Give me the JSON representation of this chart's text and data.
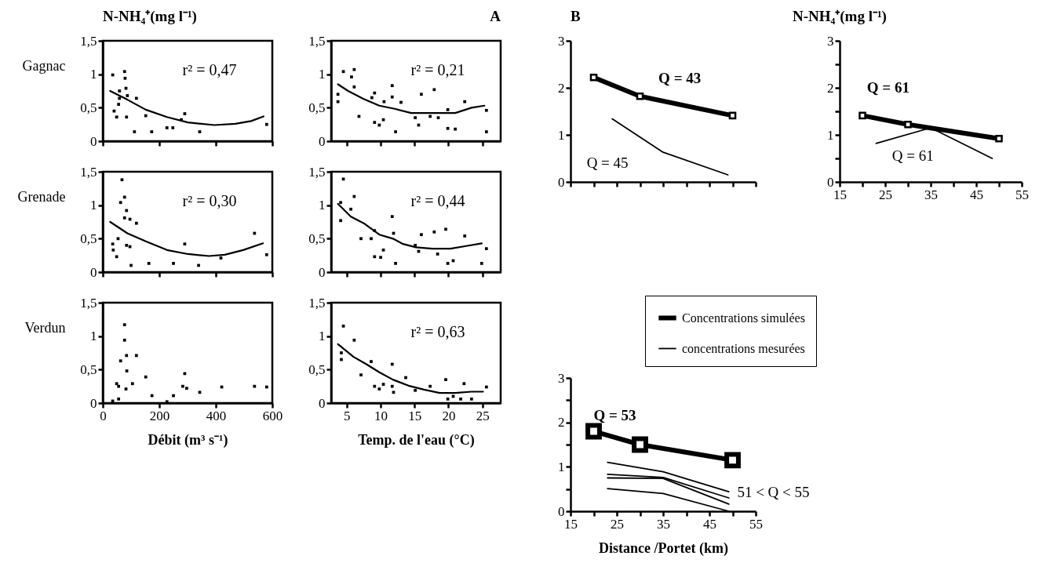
{
  "chart_data": [
    {
      "type": "scatter",
      "title": "N-NH₄⁺(mg l⁻¹)",
      "ylabel": "Gagnac",
      "xlim": [
        0,
        600
      ],
      "xticks": [
        0,
        200,
        400,
        600
      ],
      "ylim": [
        0,
        1.5
      ],
      "yticks": [
        0,
        {
          "value": 0.5,
          "label": "0,5"
        },
        1,
        {
          "value": 1.5,
          "label": "1,5"
        }
      ],
      "tick_labels": "y",
      "annotations": [
        "r² = 0,47"
      ],
      "series": [
        {
          "type": "scatter",
          "color": "#000000",
          "marker": "square",
          "x": [
            35,
            77,
            79,
            40,
            56,
            59,
            49,
            84,
            82,
            87,
            59,
            119,
            112,
            152,
            173,
            227,
            248,
            290,
            278,
            343,
            580
          ],
          "values": [
            0.99,
            1.04,
            0.94,
            0.45,
            0.55,
            0.64,
            0.36,
            0.36,
            0.79,
            0.68,
            0.75,
            0.64,
            0.14,
            0.38,
            0.14,
            0.2,
            0.2,
            0.41,
            0.32,
            0.14,
            0.25
          ]
        },
        {
          "type": "line",
          "color": "#000000",
          "x": [
            26,
            87,
            152,
            227,
            301,
            395,
            469,
            525,
            569
          ],
          "values": [
            0.75,
            0.62,
            0.47,
            0.36,
            0.28,
            0.24,
            0.26,
            0.3,
            0.37
          ]
        }
      ]
    },
    {
      "type": "scatter",
      "title": "A",
      "xlim": [
        2.7,
        27.7
      ],
      "xticks": [
        5,
        10,
        15,
        20,
        25
      ],
      "ylim": [
        0,
        1.5
      ],
      "yticks": [
        0,
        {
          "value": 0.5,
          "label": "0,5"
        },
        1,
        {
          "value": 1.5,
          "label": "1,5"
        }
      ],
      "tick_labels": "y",
      "annotations": [
        "r² = 0,21"
      ],
      "series": [
        {
          "type": "scatter",
          "color": "#000000",
          "marker": "square",
          "x": [
            4.5,
            5.7,
            6.1,
            6.1,
            3.7,
            3.7,
            6.8,
            8.7,
            9.1,
            9.1,
            9.8,
            10.4,
            10.5,
            11.7,
            11.7,
            13,
            12.2,
            15.1,
            15.6,
            16,
            17.3,
            17.9,
            18.5,
            19.9,
            19.9,
            21,
            22.4,
            25.6,
            25.6
          ],
          "values": [
            1.04,
            0.96,
            1.07,
            0.81,
            0.7,
            0.59,
            0.37,
            0.65,
            0.72,
            0.28,
            0.24,
            0.32,
            0.59,
            0.83,
            0.66,
            0.58,
            0.14,
            0.35,
            0.24,
            0.7,
            0.37,
            0.77,
            0.35,
            0.47,
            0.19,
            0.18,
            0.59,
            0.46,
            0.14
          ]
        },
        {
          "type": "line",
          "color": "#000000",
          "x": [
            3.7,
            5.2,
            7.5,
            9.8,
            12.2,
            14.5,
            17.6,
            21,
            23.4,
            25.3
          ],
          "values": [
            0.85,
            0.75,
            0.63,
            0.53,
            0.48,
            0.42,
            0.42,
            0.42,
            0.5,
            0.53
          ]
        }
      ]
    },
    {
      "type": "scatter",
      "ylabel": "Grenade",
      "xlim": [
        0,
        600
      ],
      "xticks": [
        0,
        200,
        400,
        600
      ],
      "ylim": [
        0,
        1.5
      ],
      "yticks": [
        0,
        {
          "value": 0.5,
          "label": "0,5"
        },
        1,
        {
          "value": 1.5,
          "label": "1,5"
        }
      ],
      "tick_labels": "y",
      "annotations": [
        "r² = 0,30"
      ],
      "series": [
        {
          "type": "scatter",
          "color": "#000000",
          "marker": "square",
          "x": [
            68,
            63,
            77,
            84,
            77,
            96,
            119,
            35,
            37,
            49,
            54,
            84,
            96,
            100,
            163,
            250,
            290,
            339,
            537,
            580,
            418
          ],
          "values": [
            1.38,
            1.04,
            1.12,
            0.92,
            0.81,
            0.79,
            0.73,
            0.42,
            0.33,
            0.23,
            0.5,
            0.4,
            0.38,
            0.1,
            0.13,
            0.13,
            0.42,
            0.1,
            0.58,
            0.26,
            0.21
          ]
        },
        {
          "type": "line",
          "color": "#000000",
          "x": [
            26,
            87,
            152,
            227,
            301,
            376,
            432,
            497,
            567
          ],
          "values": [
            0.75,
            0.58,
            0.46,
            0.33,
            0.27,
            0.24,
            0.26,
            0.33,
            0.43
          ]
        }
      ]
    },
    {
      "type": "scatter",
      "xlim": [
        2.7,
        27.7
      ],
      "xticks": [
        5,
        10,
        15,
        20,
        25
      ],
      "ylim": [
        0,
        1.5
      ],
      "yticks": [
        0,
        {
          "value": 0.5,
          "label": "0,5"
        },
        1,
        {
          "value": 1.5,
          "label": "1,5"
        }
      ],
      "tick_labels": "y",
      "annotations": [
        "r² = 0,44"
      ],
      "series": [
        {
          "type": "scatter",
          "color": "#000000",
          "marker": "square",
          "x": [
            4.5,
            4.1,
            4.1,
            6.1,
            5.6,
            7.1,
            8.6,
            9.1,
            9.1,
            10,
            10.4,
            11.7,
            11.9,
            12.2,
            15.1,
            15.6,
            16,
            17.9,
            18.4,
            19.6,
            19.9,
            20.7,
            22.4,
            24.9,
            25.6
          ],
          "values": [
            1.39,
            1.04,
            0.77,
            1.13,
            0.94,
            0.5,
            0.5,
            0.62,
            0.23,
            0.22,
            0.33,
            0.83,
            0.58,
            0.13,
            0.4,
            0.31,
            0.56,
            0.6,
            0.27,
            0.64,
            0.13,
            0.17,
            0.54,
            0.13,
            0.35
          ]
        },
        {
          "type": "line",
          "color": "#000000",
          "x": [
            3.7,
            5.6,
            7.5,
            9.8,
            11.8,
            13.3,
            15.2,
            17.6,
            20.3,
            22.6,
            24.9
          ],
          "values": [
            1.02,
            0.83,
            0.73,
            0.56,
            0.5,
            0.42,
            0.37,
            0.35,
            0.35,
            0.39,
            0.43
          ]
        }
      ]
    },
    {
      "type": "scatter",
      "ylabel": "Verdun",
      "xlabel": "Débit (m³ s⁻¹)",
      "xlim": [
        0,
        600
      ],
      "xticks": [
        0,
        200,
        400,
        600
      ],
      "ylim": [
        0,
        1.5
      ],
      "yticks": [
        0,
        {
          "value": 0.5,
          "label": "0,5"
        },
        1,
        {
          "value": 1.5,
          "label": "1,5"
        }
      ],
      "series": [
        {
          "type": "scatter",
          "color": "#000000",
          "marker": "square",
          "x": [
            77,
            77,
            84,
            63,
            85,
            119,
            105,
            49,
            56,
            82,
            56,
            35,
            152,
            174,
            227,
            250,
            283,
            290,
            297,
            343,
            421,
            537,
            580
          ],
          "values": [
            1.17,
            0.94,
            0.71,
            0.63,
            0.48,
            0.71,
            0.29,
            0.29,
            0.25,
            0.21,
            0.06,
            0.03,
            0.39,
            0.11,
            0.02,
            0.11,
            0.25,
            0.44,
            0.22,
            0.16,
            0.24,
            0.25,
            0.24
          ]
        }
      ]
    },
    {
      "type": "scatter",
      "xlabel": "Temp. de l'eau (°C)",
      "xlim": [
        2.7,
        27.7
      ],
      "xticks": [
        5,
        10,
        15,
        20,
        25
      ],
      "ylim": [
        0,
        1.5
      ],
      "yticks": [
        0,
        {
          "value": 0.5,
          "label": "0,5"
        },
        1,
        {
          "value": 1.5,
          "label": "1,5"
        }
      ],
      "annotations": [
        "r² = 0,63"
      ],
      "series": [
        {
          "type": "scatter",
          "color": "#000000",
          "marker": "square",
          "x": [
            4.5,
            4.2,
            4.2,
            6.1,
            7.1,
            8.6,
            9.1,
            9.8,
            10.4,
            11.7,
            11.7,
            11.9,
            13.7,
            15.1,
            17.3,
            19.6,
            20.7,
            22.3,
            21.8,
            23.4,
            25.6,
            19.9
          ],
          "values": [
            1.15,
            0.75,
            0.65,
            0.94,
            0.42,
            0.62,
            0.25,
            0.21,
            0.28,
            0.58,
            0.25,
            0.16,
            0.38,
            0.19,
            0.25,
            0.35,
            0.1,
            0.29,
            0.06,
            0.06,
            0.24,
            0.06
          ]
        },
        {
          "type": "line",
          "color": "#000000",
          "x": [
            3.7,
            6,
            7.9,
            9.8,
            11.8,
            14.1,
            16.4,
            18.7,
            21,
            23.4,
            25.1
          ],
          "values": [
            0.88,
            0.69,
            0.58,
            0.46,
            0.35,
            0.26,
            0.2,
            0.15,
            0.15,
            0.17,
            0.17
          ]
        }
      ]
    },
    {
      "type": "line",
      "title": "B",
      "xlim": [
        15,
        55
      ],
      "xticks": [
        15,
        {
          "value": 20,
          "label": null
        },
        25,
        {
          "value": 30,
          "label": null
        },
        35,
        {
          "value": 40,
          "label": null
        },
        45,
        {
          "value": 50,
          "label": null
        },
        55
      ],
      "ylim": [
        0,
        3
      ],
      "yticks": [
        0,
        1,
        2,
        3
      ],
      "tick_labels": "y",
      "annotations": [
        "Q = 43",
        "Q = 45"
      ],
      "series": [
        {
          "type": "line",
          "color": "#000000",
          "marker": "square",
          "x": [
            20,
            30,
            50
          ],
          "values": [
            2.22,
            1.82,
            1.41
          ]
        },
        {
          "type": "line",
          "color": "#000000",
          "x": [
            24,
            35,
            49
          ],
          "values": [
            1.34,
            0.63,
            0.15
          ]
        }
      ]
    },
    {
      "type": "line",
      "title": "N-NH₄⁺(mg l⁻¹)",
      "xlim": [
        15,
        55
      ],
      "xticks": [
        15,
        {
          "value": 20,
          "label": null
        },
        25,
        {
          "value": 30,
          "label": null
        },
        35,
        {
          "value": 40,
          "label": null
        },
        45,
        {
          "value": 50,
          "label": null
        },
        55
      ],
      "ylim": [
        0,
        3
      ],
      "yticks": [
        0,
        {
          "value": 0.5,
          "label": null
        },
        1,
        {
          "value": 1.5,
          "label": null
        },
        2,
        {
          "value": 2.5,
          "label": null
        },
        3
      ],
      "annotations": [
        "Q = 61",
        "Q = 61"
      ],
      "series": [
        {
          "type": "line",
          "color": "#000000",
          "marker": "square",
          "x": [
            20,
            30,
            50
          ],
          "values": [
            1.41,
            1.22,
            0.92
          ]
        },
        {
          "type": "line",
          "color": "#000000",
          "x": [
            23,
            35,
            48.5
          ],
          "values": [
            0.82,
            1.15,
            0.5
          ]
        }
      ]
    },
    {
      "type": "line",
      "xlabel": "Distance /Portet (km)",
      "legend": "top",
      "xlim": [
        15,
        55
      ],
      "xticks": [
        15,
        {
          "value": 20,
          "label": null
        },
        25,
        {
          "value": 30,
          "label": null
        },
        35,
        {
          "value": 40,
          "label": null
        },
        45,
        {
          "value": 50,
          "label": null
        },
        55
      ],
      "ylim": [
        0,
        3
      ],
      "yticks": [
        0,
        {
          "value": 0.5,
          "label": null
        },
        1,
        {
          "value": 1.5,
          "label": null
        },
        2,
        {
          "value": 2.5,
          "label": null
        },
        3
      ],
      "annotations": [
        "Q = 53",
        "51 < Q < 55"
      ],
      "series": [
        {
          "type": "line",
          "name": "Concentrations simulées",
          "color": "#000000",
          "marker": "square",
          "x": [
            20,
            30,
            50
          ],
          "values": [
            1.8,
            1.5,
            1.15
          ]
        },
        {
          "type": "line",
          "name": "concentrations mesurées",
          "color": "#000000",
          "x": [
            23,
            35,
            49.2
          ],
          "values": [
            1.1,
            0.89,
            0.44
          ]
        },
        {
          "type": "line",
          "color": "#000000",
          "x": [
            23,
            35,
            49.2
          ],
          "values": [
            0.83,
            0.76,
            0.3
          ]
        },
        {
          "type": "line",
          "color": "#000000",
          "x": [
            23,
            35,
            49.2
          ],
          "values": [
            0.75,
            0.74,
            0.16
          ]
        },
        {
          "type": "line",
          "color": "#000000",
          "x": [
            23,
            35,
            49.2
          ],
          "values": [
            0.51,
            0.4,
            0.0
          ]
        }
      ]
    }
  ]
}
